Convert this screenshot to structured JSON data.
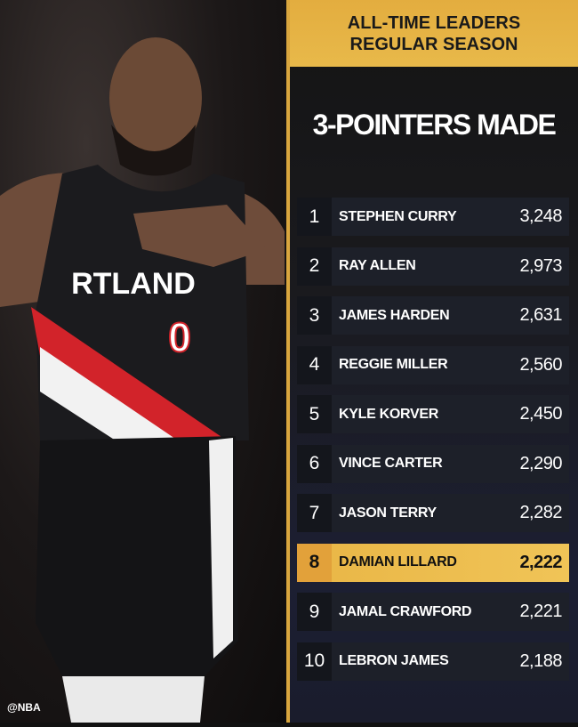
{
  "header": {
    "line1": "ALL-TIME LEADERS",
    "line2": "REGULAR SEASON"
  },
  "title": "3-POINTERS MADE",
  "photo": {
    "jersey_text": "RTLAND",
    "jersey_number": "0"
  },
  "watermark": "@NBA",
  "colors": {
    "gold": "#e8b94a",
    "row": "#1d2029",
    "jersey_red": "#d2232a"
  },
  "leaders": [
    {
      "rank": "1",
      "name": "STEPHEN CURRY",
      "value": "3,248"
    },
    {
      "rank": "2",
      "name": "RAY ALLEN",
      "value": "2,973"
    },
    {
      "rank": "3",
      "name": "JAMES HARDEN",
      "value": "2,631"
    },
    {
      "rank": "4",
      "name": "REGGIE MILLER",
      "value": "2,560"
    },
    {
      "rank": "5",
      "name": "KYLE KORVER",
      "value": "2,450"
    },
    {
      "rank": "6",
      "name": "VINCE CARTER",
      "value": "2,290"
    },
    {
      "rank": "7",
      "name": "JASON TERRY",
      "value": "2,282"
    },
    {
      "rank": "8",
      "name": "DAMIAN LILLARD",
      "value": "2,222",
      "highlight": true
    },
    {
      "rank": "9",
      "name": "JAMAL CRAWFORD",
      "value": "2,221"
    },
    {
      "rank": "10",
      "name": "LEBRON JAMES",
      "value": "2,188"
    }
  ]
}
